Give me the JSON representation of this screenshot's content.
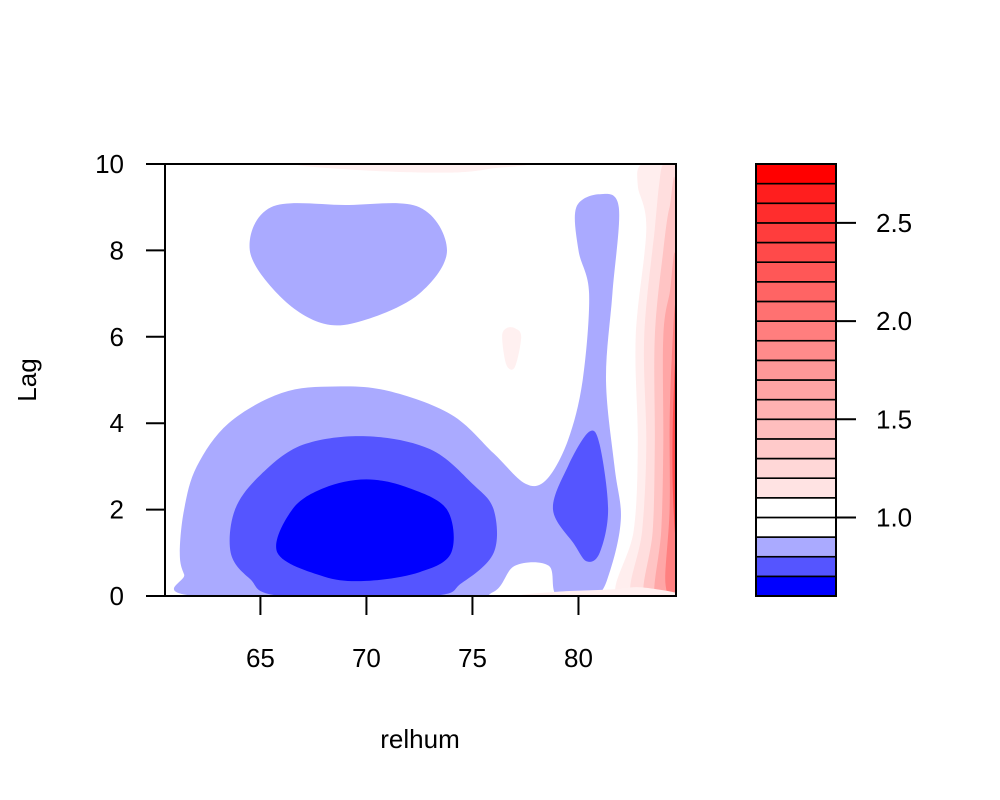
{
  "chart_data": {
    "type": "heatmap",
    "subtype": "filled-contour",
    "title": "",
    "xlabel": "relhum",
    "ylabel": "Lag",
    "xlim": [
      60.5,
      84.6
    ],
    "ylim": [
      0,
      10
    ],
    "x_ticks": [
      65,
      70,
      75,
      80
    ],
    "x_tick_labels": [
      "65",
      "70",
      "75",
      "80"
    ],
    "y_ticks": [
      0,
      2,
      4,
      6,
      8,
      10
    ],
    "y_tick_labels": [
      "0",
      "2",
      "4",
      "6",
      "8",
      "10"
    ],
    "legend": {
      "placement": "right",
      "range": [
        0.6,
        2.8
      ],
      "ticks": [
        1.0,
        1.5,
        2.0,
        2.5
      ],
      "tick_labels": [
        "1.0",
        "1.5",
        "2.0",
        "2.5"
      ],
      "levels": [
        0.6,
        0.7,
        0.8,
        0.9,
        1.0,
        1.1,
        1.2,
        1.3,
        1.4,
        1.5,
        1.6,
        1.7,
        1.8,
        1.9,
        2.0,
        2.1,
        2.2,
        2.3,
        2.4,
        2.5,
        2.6,
        2.7,
        2.8
      ],
      "colors": [
        "#0000ff",
        "#5555ff",
        "#aaaaff",
        "#ffffff",
        "#ffffff",
        "#ffe3e3",
        "#ffd7d7",
        "#ffcaca",
        "#ffbebe",
        "#ffb1b1",
        "#ffa4a4",
        "#ff9898",
        "#ff8b8b",
        "#ff7e7e",
        "#ff7171",
        "#ff6464",
        "#ff5757",
        "#ff4a4a",
        "#ff3d3d",
        "#ff2d2d",
        "#ff1e1e",
        "#ff0000"
      ]
    },
    "regions": [
      {
        "level": "0.8-0.9",
        "color": "#aaaaff",
        "name": "low-region-bottom",
        "points": [
          [
            61.2,
            1.0
          ],
          [
            61.4,
            2.0
          ],
          [
            62.0,
            3.0
          ],
          [
            63.5,
            4.0
          ],
          [
            66.0,
            4.7
          ],
          [
            68.5,
            4.85
          ],
          [
            71.0,
            4.75
          ],
          [
            74.0,
            4.2
          ],
          [
            76.0,
            3.3
          ],
          [
            77.5,
            2.6
          ],
          [
            78.5,
            2.7
          ],
          [
            79.5,
            3.6
          ],
          [
            80.2,
            5.0
          ],
          [
            80.5,
            7.0
          ],
          [
            80.0,
            8.0
          ],
          [
            79.9,
            9.0
          ],
          [
            81.0,
            9.3
          ],
          [
            81.9,
            9.0
          ],
          [
            81.6,
            7.0
          ],
          [
            81.3,
            5.0
          ],
          [
            81.7,
            3.0
          ],
          [
            82.0,
            1.8
          ],
          [
            81.5,
            0.6
          ],
          [
            80.8,
            0.0
          ],
          [
            79.0,
            0.0
          ],
          [
            78.6,
            0.7
          ],
          [
            77.0,
            0.7
          ],
          [
            76.0,
            0.1
          ],
          [
            74.0,
            0.0
          ],
          [
            62.0,
            0.0
          ],
          [
            61.4,
            0.5
          ]
        ]
      },
      {
        "level": "0.8-0.9",
        "color": "#aaaaff",
        "name": "low-region-top",
        "points": [
          [
            64.5,
            8.0
          ],
          [
            65.5,
            9.0
          ],
          [
            69.0,
            9.05
          ],
          [
            72.5,
            9.0
          ],
          [
            73.8,
            8.0
          ],
          [
            72.5,
            7.0
          ],
          [
            70.0,
            6.4
          ],
          [
            68.0,
            6.3
          ],
          [
            66.0,
            6.9
          ]
        ]
      },
      {
        "level": "0.7-0.8",
        "color": "#5555ff",
        "name": "mid-region-left",
        "points": [
          [
            63.6,
            1.0
          ],
          [
            63.8,
            2.0
          ],
          [
            65.0,
            2.8
          ],
          [
            67.0,
            3.5
          ],
          [
            70.0,
            3.7
          ],
          [
            73.0,
            3.4
          ],
          [
            75.0,
            2.6
          ],
          [
            76.0,
            2.0
          ],
          [
            76.0,
            1.0
          ],
          [
            74.5,
            0.3
          ],
          [
            73.0,
            0.0
          ],
          [
            66.0,
            0.0
          ],
          [
            64.5,
            0.4
          ]
        ]
      },
      {
        "level": "0.7-0.8",
        "color": "#5555ff",
        "name": "mid-region-right",
        "points": [
          [
            78.8,
            2.0
          ],
          [
            79.5,
            3.0
          ],
          [
            80.5,
            3.8
          ],
          [
            81.0,
            3.5
          ],
          [
            81.4,
            2.0
          ],
          [
            81.0,
            1.0
          ],
          [
            80.4,
            0.8
          ],
          [
            79.8,
            1.2
          ]
        ]
      },
      {
        "level": "0.6-0.7",
        "color": "#0000ff",
        "name": "deep-region",
        "points": [
          [
            65.8,
            1.0
          ],
          [
            66.5,
            2.0
          ],
          [
            68.0,
            2.5
          ],
          [
            70.0,
            2.7
          ],
          [
            72.0,
            2.5
          ],
          [
            73.8,
            2.0
          ],
          [
            74.0,
            1.0
          ],
          [
            72.5,
            0.55
          ],
          [
            70.0,
            0.35
          ],
          [
            68.0,
            0.45
          ]
        ]
      },
      {
        "level": "1.0-1.1",
        "color": "#fff0f0",
        "name": "faint-region-top",
        "points": [
          [
            67.0,
            10.0
          ],
          [
            77.0,
            10.0
          ],
          [
            76.0,
            9.9
          ],
          [
            74.0,
            9.8
          ],
          [
            70.0,
            9.85
          ]
        ]
      },
      {
        "level": "1.0-1.1",
        "color": "#fff0f0",
        "name": "faint-region-spot",
        "points": [
          [
            76.4,
            6.0
          ],
          [
            76.6,
            5.35
          ],
          [
            77.0,
            5.3
          ],
          [
            77.3,
            6.0
          ],
          [
            77.0,
            6.2
          ],
          [
            76.6,
            6.2
          ]
        ]
      },
      {
        "level": "1.0-1.1",
        "color": "#fff0f0",
        "name": "faint-region-bottom",
        "points": [
          [
            77.5,
            0.0
          ],
          [
            84.6,
            0.0
          ],
          [
            83.0,
            0.2
          ],
          [
            81.5,
            0.15
          ],
          [
            79.0,
            0.1
          ]
        ]
      }
    ],
    "right_gradient": {
      "name": "high-region-right",
      "bands": [
        {
          "color": "#ffeeee",
          "points": [
            [
              83.0,
              10.0
            ],
            [
              84.6,
              10.0
            ],
            [
              84.6,
              0.0
            ],
            [
              81.8,
              0.0
            ],
            [
              82.6,
              1.5
            ],
            [
              82.8,
              3.5
            ],
            [
              82.7,
              6.0
            ],
            [
              83.2,
              8.5
            ],
            [
              82.8,
              9.5
            ]
          ]
        },
        {
          "color": "#ffdede",
          "points": [
            [
              84.0,
              10.0
            ],
            [
              84.6,
              10.0
            ],
            [
              84.6,
              0.0
            ],
            [
              82.5,
              0.0
            ],
            [
              83.0,
              1.5
            ],
            [
              83.2,
              3.5
            ],
            [
              83.1,
              6.0
            ],
            [
              83.6,
              8.5
            ],
            [
              83.8,
              9.5
            ]
          ]
        },
        {
          "color": "#ffc4c4",
          "points": [
            [
              84.3,
              9.0
            ],
            [
              84.6,
              9.0
            ],
            [
              84.6,
              0.0
            ],
            [
              83.1,
              0.0
            ],
            [
              83.5,
              1.5
            ],
            [
              83.6,
              3.5
            ],
            [
              83.6,
              6.0
            ],
            [
              84.0,
              8.0
            ]
          ]
        },
        {
          "color": "#ffa6a6",
          "points": [
            [
              84.6,
              7.5
            ],
            [
              84.6,
              0.0
            ],
            [
              83.6,
              0.0
            ],
            [
              83.9,
              1.5
            ],
            [
              84.0,
              3.5
            ],
            [
              84.0,
              6.0
            ],
            [
              84.3,
              7.0
            ]
          ]
        },
        {
          "color": "#ff8080",
          "points": [
            [
              84.6,
              6.5
            ],
            [
              84.6,
              0.3
            ],
            [
              84.1,
              0.3
            ],
            [
              84.3,
              2.0
            ],
            [
              84.3,
              4.0
            ],
            [
              84.4,
              5.5
            ]
          ]
        },
        {
          "color": "#ff4a4a",
          "points": [
            [
              84.6,
              5.5
            ],
            [
              84.6,
              1.5
            ],
            [
              84.45,
              2.5
            ],
            [
              84.45,
              4.0
            ]
          ]
        }
      ]
    }
  }
}
